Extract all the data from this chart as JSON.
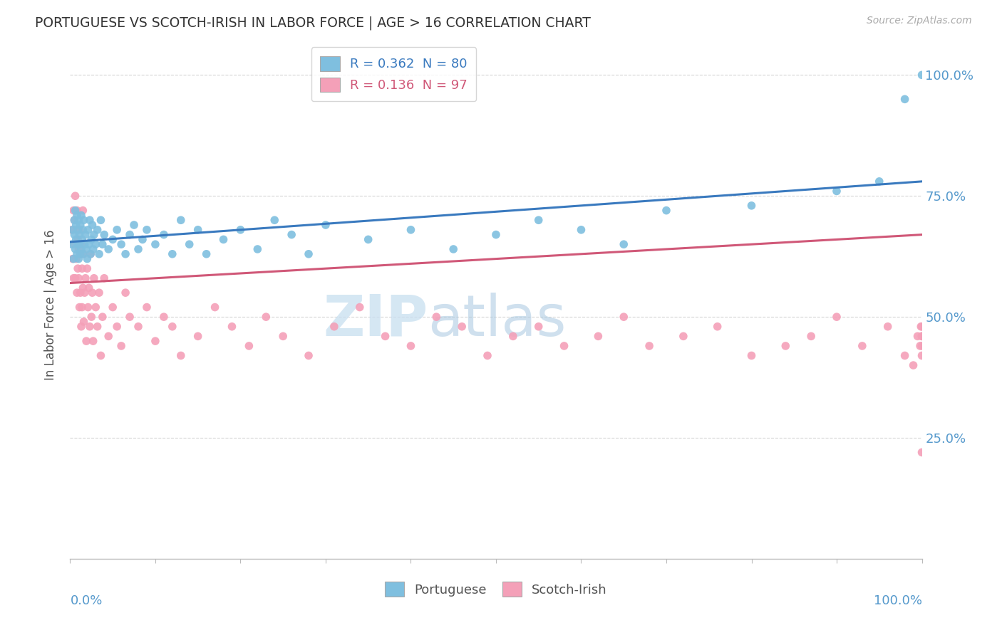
{
  "title": "PORTUGUESE VS SCOTCH-IRISH IN LABOR FORCE | AGE > 16 CORRELATION CHART",
  "source_text": "Source: ZipAtlas.com",
  "ylabel": "In Labor Force | Age > 16",
  "xlim": [
    0.0,
    1.0
  ],
  "ylim": [
    0.0,
    1.05
  ],
  "ytick_positions": [
    0.25,
    0.5,
    0.75,
    1.0
  ],
  "ytick_labels": [
    "25.0%",
    "50.0%",
    "75.0%",
    "100.0%"
  ],
  "portuguese_color": "#7fbfdf",
  "scotch_irish_color": "#f4a0b8",
  "portuguese_line_color": "#3a7abf",
  "scotch_irish_line_color": "#d05878",
  "tick_color": "#5599cc",
  "background_color": "#ffffff",
  "grid_color": "#cccccc",
  "portuguese_R": 0.362,
  "portuguese_N": 80,
  "scotch_irish_R": 0.136,
  "scotch_irish_N": 97,
  "port_x": [
    0.002,
    0.003,
    0.004,
    0.005,
    0.005,
    0.006,
    0.006,
    0.007,
    0.007,
    0.008,
    0.008,
    0.009,
    0.009,
    0.01,
    0.01,
    0.011,
    0.011,
    0.012,
    0.012,
    0.013,
    0.013,
    0.014,
    0.015,
    0.015,
    0.016,
    0.017,
    0.018,
    0.019,
    0.02,
    0.021,
    0.022,
    0.023,
    0.024,
    0.025,
    0.026,
    0.027,
    0.028,
    0.03,
    0.032,
    0.034,
    0.036,
    0.038,
    0.04,
    0.045,
    0.05,
    0.055,
    0.06,
    0.065,
    0.07,
    0.075,
    0.08,
    0.085,
    0.09,
    0.1,
    0.11,
    0.12,
    0.13,
    0.14,
    0.15,
    0.16,
    0.18,
    0.2,
    0.22,
    0.24,
    0.26,
    0.28,
    0.3,
    0.35,
    0.4,
    0.45,
    0.5,
    0.55,
    0.6,
    0.65,
    0.7,
    0.8,
    0.9,
    0.95,
    0.98,
    1.0
  ],
  "port_y": [
    0.65,
    0.68,
    0.62,
    0.7,
    0.67,
    0.64,
    0.72,
    0.66,
    0.69,
    0.63,
    0.71,
    0.65,
    0.68,
    0.62,
    0.7,
    0.65,
    0.67,
    0.63,
    0.69,
    0.64,
    0.71,
    0.66,
    0.68,
    0.63,
    0.7,
    0.65,
    0.67,
    0.64,
    0.62,
    0.68,
    0.65,
    0.7,
    0.63,
    0.66,
    0.69,
    0.64,
    0.67,
    0.65,
    0.68,
    0.63,
    0.7,
    0.65,
    0.67,
    0.64,
    0.66,
    0.68,
    0.65,
    0.63,
    0.67,
    0.69,
    0.64,
    0.66,
    0.68,
    0.65,
    0.67,
    0.63,
    0.7,
    0.65,
    0.68,
    0.63,
    0.66,
    0.68,
    0.64,
    0.7,
    0.67,
    0.63,
    0.69,
    0.66,
    0.68,
    0.64,
    0.67,
    0.7,
    0.68,
    0.65,
    0.72,
    0.73,
    0.76,
    0.78,
    0.95,
    1.0
  ],
  "scotch_x": [
    0.002,
    0.003,
    0.004,
    0.004,
    0.005,
    0.005,
    0.006,
    0.006,
    0.007,
    0.007,
    0.008,
    0.008,
    0.009,
    0.009,
    0.01,
    0.01,
    0.011,
    0.011,
    0.012,
    0.012,
    0.013,
    0.013,
    0.014,
    0.014,
    0.015,
    0.015,
    0.016,
    0.016,
    0.017,
    0.018,
    0.019,
    0.02,
    0.021,
    0.022,
    0.023,
    0.024,
    0.025,
    0.026,
    0.027,
    0.028,
    0.03,
    0.032,
    0.034,
    0.036,
    0.038,
    0.04,
    0.045,
    0.05,
    0.055,
    0.06,
    0.065,
    0.07,
    0.08,
    0.09,
    0.1,
    0.11,
    0.12,
    0.13,
    0.15,
    0.17,
    0.19,
    0.21,
    0.23,
    0.25,
    0.28,
    0.31,
    0.34,
    0.37,
    0.4,
    0.43,
    0.46,
    0.49,
    0.52,
    0.55,
    0.58,
    0.62,
    0.65,
    0.68,
    0.72,
    0.76,
    0.8,
    0.84,
    0.87,
    0.9,
    0.93,
    0.96,
    0.98,
    0.99,
    0.995,
    0.998,
    0.999,
    1.0,
    1.0,
    1.0,
    1.0,
    1.0,
    1.0
  ],
  "scotch_y": [
    0.68,
    0.62,
    0.58,
    0.72,
    0.65,
    0.7,
    0.58,
    0.75,
    0.62,
    0.68,
    0.55,
    0.72,
    0.6,
    0.66,
    0.58,
    0.64,
    0.52,
    0.68,
    0.55,
    0.63,
    0.48,
    0.65,
    0.52,
    0.6,
    0.56,
    0.72,
    0.49,
    0.63,
    0.55,
    0.58,
    0.45,
    0.6,
    0.52,
    0.56,
    0.48,
    0.63,
    0.5,
    0.55,
    0.45,
    0.58,
    0.52,
    0.48,
    0.55,
    0.42,
    0.5,
    0.58,
    0.46,
    0.52,
    0.48,
    0.44,
    0.55,
    0.5,
    0.48,
    0.52,
    0.45,
    0.5,
    0.48,
    0.42,
    0.46,
    0.52,
    0.48,
    0.44,
    0.5,
    0.46,
    0.42,
    0.48,
    0.52,
    0.46,
    0.44,
    0.5,
    0.48,
    0.42,
    0.46,
    0.48,
    0.44,
    0.46,
    0.5,
    0.44,
    0.46,
    0.48,
    0.42,
    0.44,
    0.46,
    0.5,
    0.44,
    0.48,
    0.42,
    0.4,
    0.46,
    0.44,
    0.48,
    0.42,
    0.46,
    0.44,
    0.48,
    0.46,
    0.22
  ]
}
